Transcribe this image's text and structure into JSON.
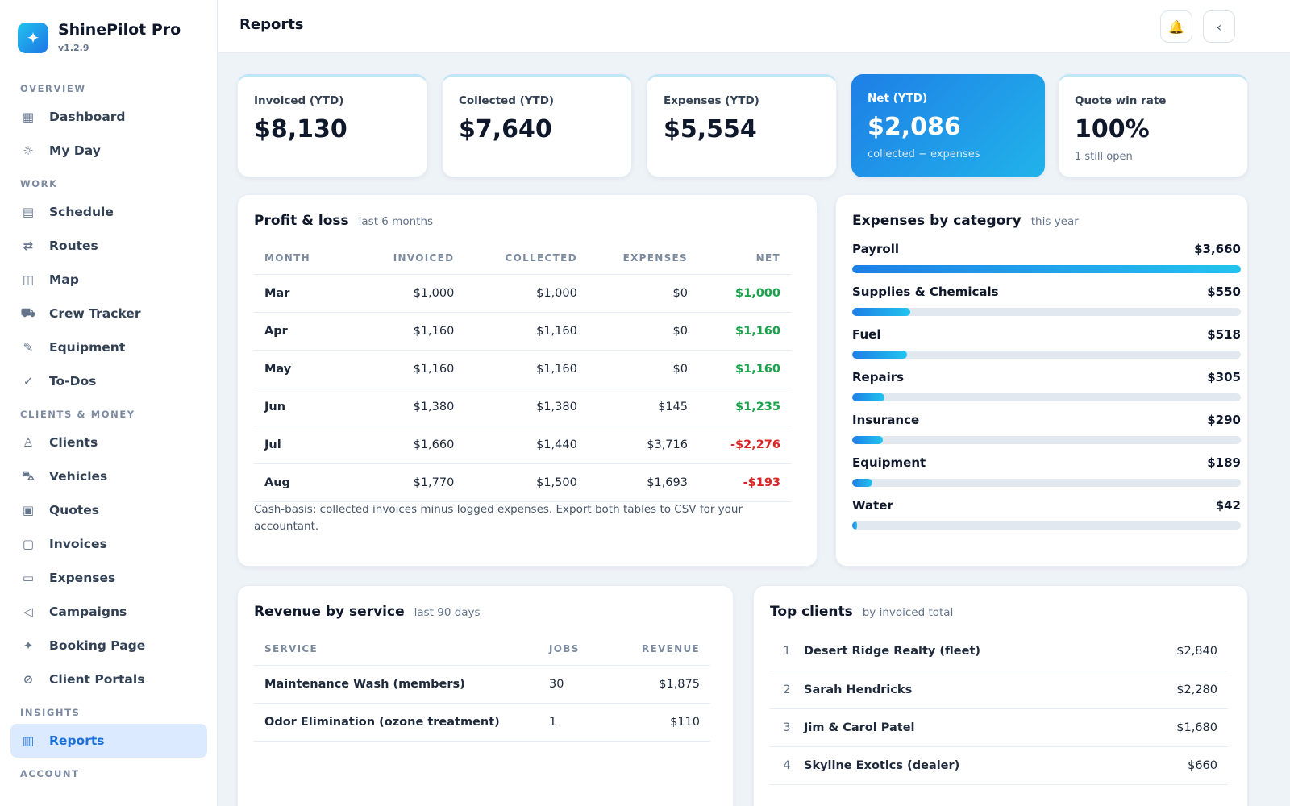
{
  "app": {
    "name": "ShinePilot Pro",
    "version": "v1.2.9",
    "logo_icon": "sparkle-icon"
  },
  "topbar": {
    "title": "Reports",
    "bell_icon": "🔔",
    "collapse_icon": "‹"
  },
  "sidebar": {
    "sections": [
      {
        "title": "OVERVIEW",
        "items": [
          {
            "label": "Dashboard",
            "icon": "▦"
          },
          {
            "label": "My Day",
            "icon": "☼"
          }
        ]
      },
      {
        "title": "WORK",
        "items": [
          {
            "label": "Schedule",
            "icon": "▤"
          },
          {
            "label": "Routes",
            "icon": "⇄"
          },
          {
            "label": "Map",
            "icon": "◫"
          },
          {
            "label": "Crew Tracker",
            "icon": "⛟"
          },
          {
            "label": "Equipment",
            "icon": "✎"
          },
          {
            "label": "To-Dos",
            "icon": "✓"
          }
        ]
      },
      {
        "title": "CLIENTS & MONEY",
        "items": [
          {
            "label": "Clients",
            "icon": "♙"
          },
          {
            "label": "Vehicles",
            "icon": "⛍"
          },
          {
            "label": "Quotes",
            "icon": "▣"
          },
          {
            "label": "Invoices",
            "icon": "▢"
          },
          {
            "label": "Expenses",
            "icon": "▭"
          },
          {
            "label": "Campaigns",
            "icon": "◁"
          },
          {
            "label": "Booking Page",
            "icon": "✦"
          },
          {
            "label": "Client Portals",
            "icon": "⊘"
          }
        ]
      },
      {
        "title": "INSIGHTS",
        "items": [
          {
            "label": "Reports",
            "icon": "▥",
            "active": true
          }
        ]
      },
      {
        "title": "ACCOUNT",
        "items": []
      }
    ]
  },
  "stats": [
    {
      "label": "Invoiced (YTD)",
      "value": "$8,130",
      "sub": ""
    },
    {
      "label": "Collected (YTD)",
      "value": "$7,640",
      "sub": ""
    },
    {
      "label": "Expenses (YTD)",
      "value": "$5,554",
      "sub": ""
    },
    {
      "label": "Net (YTD)",
      "value": "$2,086",
      "sub": "collected − expenses"
    },
    {
      "label": "Quote win rate",
      "value": "100%",
      "sub": "1 still open"
    }
  ],
  "profit_loss": {
    "title": "Profit & loss",
    "subtitle": "last 6 months",
    "columns": [
      "MONTH",
      "INVOICED",
      "COLLECTED",
      "EXPENSES",
      "NET"
    ],
    "rows": [
      {
        "month": "Mar",
        "invoiced": "$1,000",
        "collected": "$1,000",
        "expenses": "$0",
        "net": "$1,000",
        "net_sign": "pos"
      },
      {
        "month": "Apr",
        "invoiced": "$1,160",
        "collected": "$1,160",
        "expenses": "$0",
        "net": "$1,160",
        "net_sign": "pos"
      },
      {
        "month": "May",
        "invoiced": "$1,160",
        "collected": "$1,160",
        "expenses": "$0",
        "net": "$1,160",
        "net_sign": "pos"
      },
      {
        "month": "Jun",
        "invoiced": "$1,380",
        "collected": "$1,380",
        "expenses": "$145",
        "net": "$1,235",
        "net_sign": "pos"
      },
      {
        "month": "Jul",
        "invoiced": "$1,660",
        "collected": "$1,440",
        "expenses": "$3,716",
        "net": "-$2,276",
        "net_sign": "neg"
      },
      {
        "month": "Aug",
        "invoiced": "$1,770",
        "collected": "$1,500",
        "expenses": "$1,693",
        "net": "-$193",
        "net_sign": "neg"
      }
    ],
    "note": "Cash-basis: collected invoices minus logged expenses. Export both tables to CSV for your accountant."
  },
  "expenses_by_category": {
    "title": "Expenses by category",
    "subtitle": "this year",
    "items": [
      {
        "name": "Payroll",
        "amount": "$3,660",
        "value": 3660
      },
      {
        "name": "Supplies & Chemicals",
        "amount": "$550",
        "value": 550
      },
      {
        "name": "Fuel",
        "amount": "$518",
        "value": 518
      },
      {
        "name": "Repairs",
        "amount": "$305",
        "value": 305
      },
      {
        "name": "Insurance",
        "amount": "$290",
        "value": 290
      },
      {
        "name": "Equipment",
        "amount": "$189",
        "value": 189
      },
      {
        "name": "Water",
        "amount": "$42",
        "value": 42
      }
    ]
  },
  "revenue_by_service": {
    "title": "Revenue by service",
    "subtitle": "last 90 days",
    "columns": [
      "SERVICE",
      "JOBS",
      "REVENUE"
    ],
    "rows": [
      {
        "service": "Maintenance Wash (members)",
        "jobs": "30",
        "revenue": "$1,875"
      },
      {
        "service": "Odor Elimination (ozone treatment)",
        "jobs": "1",
        "revenue": "$110"
      }
    ]
  },
  "top_clients": {
    "title": "Top clients",
    "subtitle": "by invoiced total",
    "rows": [
      {
        "rank": "1",
        "name": "Desert Ridge Realty (fleet)",
        "total": "$2,840"
      },
      {
        "rank": "2",
        "name": "Sarah Hendricks",
        "total": "$2,280"
      },
      {
        "rank": "3",
        "name": "Jim & Carol Patel",
        "total": "$1,680"
      },
      {
        "rank": "4",
        "name": "Skyline Exotics (dealer)",
        "total": "$660"
      }
    ]
  }
}
